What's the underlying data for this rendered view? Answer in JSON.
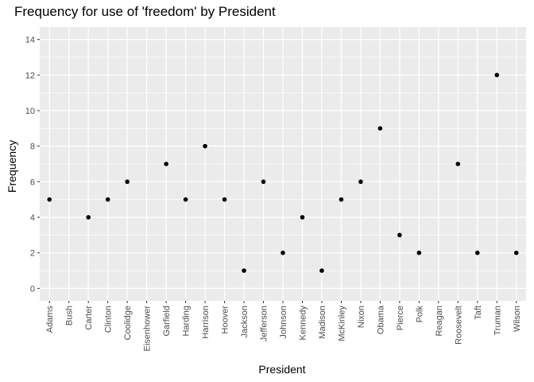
{
  "chart_data": {
    "type": "scatter",
    "title": "Frequency for use of 'freedom' by President",
    "xlabel": "President",
    "ylabel": "Frequency",
    "ylim": [
      -0.7,
      14.7
    ],
    "yticks": [
      0,
      2,
      4,
      6,
      8,
      10,
      12,
      14
    ],
    "grid": true,
    "legend": "none",
    "categories": [
      "Adams",
      "Bush",
      "Carter",
      "Clinton",
      "Coolidge",
      "Eisenhower",
      "Garfield",
      "Harding",
      "Harrison",
      "Hoover",
      "Jackson",
      "Jefferson",
      "Johnson",
      "Kennedy",
      "Madison",
      "McKinley",
      "Nixon",
      "Obama",
      "Pierce",
      "Polk",
      "Reagan",
      "Roosevelt",
      "Taft",
      "Truman",
      "Wilson"
    ],
    "values": [
      5,
      null,
      4,
      5,
      6,
      null,
      7,
      5,
      8,
      5,
      1,
      6,
      2,
      4,
      1,
      5,
      6,
      9,
      3,
      2,
      null,
      7,
      2,
      12,
      2
    ],
    "colors": {
      "panel": "#EBEBEB",
      "grid_major": "#FFFFFF",
      "point": "#000000",
      "tick_text": "#4D4D4D"
    }
  }
}
